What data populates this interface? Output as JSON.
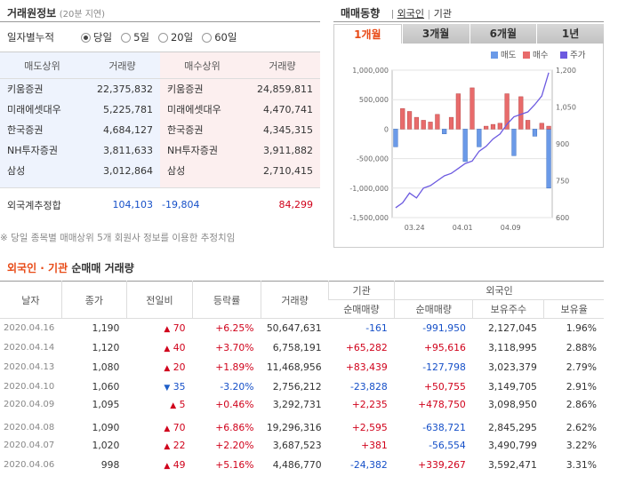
{
  "left": {
    "title": "거래원정보",
    "delay_note": "(20분 지연)",
    "cumulative_label": "일자별누적",
    "radio_options": [
      {
        "label": "당일",
        "selected": true
      },
      {
        "label": "5일",
        "selected": false
      },
      {
        "label": "20일",
        "selected": false
      },
      {
        "label": "60일",
        "selected": false
      }
    ],
    "headers": {
      "sell_top": "매도상위",
      "sell_vol": "거래량",
      "buy_top": "매수상위",
      "buy_vol": "거래량"
    },
    "rows": [
      {
        "sell": "키움증권",
        "sell_vol": "22,375,832",
        "buy": "키움증권",
        "buy_vol": "24,859,811"
      },
      {
        "sell": "미래에셋대우",
        "sell_vol": "5,225,781",
        "buy": "미래에셋대우",
        "buy_vol": "4,470,741"
      },
      {
        "sell": "한국증권",
        "sell_vol": "4,684,127",
        "buy": "한국증권",
        "buy_vol": "4,345,315"
      },
      {
        "sell": "NH투자증권",
        "sell_vol": "3,811,633",
        "buy": "NH투자증권",
        "buy_vol": "3,911,882"
      },
      {
        "sell": "삼성",
        "sell_vol": "3,012,864",
        "buy": "삼성",
        "buy_vol": "2,710,415"
      }
    ],
    "foreign": {
      "label": "외국계추정합",
      "sell": "104,103",
      "net": "-19,804",
      "buy": "84,299"
    },
    "footnote": "※ 당일 종목별 매매상위 5개 회원사 정보를 이용한 추정치임"
  },
  "right": {
    "title": "매매동향",
    "filter_foreign": "외국인",
    "filter_inst": "기관",
    "tabs": [
      {
        "label": "1개월",
        "active": true
      },
      {
        "label": "3개월",
        "active": false
      },
      {
        "label": "6개월",
        "active": false
      },
      {
        "label": "1년",
        "active": false
      }
    ]
  },
  "colors": {
    "sell": "#6b9ae8",
    "buy": "#e86b6b",
    "price": "#6c5ae0",
    "accent": "#e84a16"
  },
  "chart_data": {
    "type": "bar",
    "legend": [
      "매도",
      "매수",
      "주가"
    ],
    "legend_position": "top-right",
    "x_ticks": [
      "03.24",
      "04.01",
      "04.09"
    ],
    "y_left_ticks": [
      "1,000,000",
      "500,000",
      "0",
      "-500,000",
      "-1,000,000",
      "-1,500,000"
    ],
    "y_right_ticks": [
      "1,200",
      "1,050",
      "900",
      "750",
      "600"
    ],
    "ylim_left": [
      -1500000,
      1000000
    ],
    "ylim_right": [
      600,
      1200
    ],
    "grid": true,
    "series": [
      {
        "name": "매도",
        "values": [
          -300000,
          0,
          0,
          0,
          0,
          0,
          0,
          -80000,
          0,
          0,
          -550000,
          0,
          -300000,
          0,
          0,
          0,
          0,
          -450000,
          0,
          0,
          -120000,
          0,
          -1000000
        ]
      },
      {
        "name": "매수",
        "values": [
          0,
          350000,
          300000,
          200000,
          150000,
          120000,
          250000,
          0,
          200000,
          600000,
          0,
          700000,
          0,
          50000,
          80000,
          100000,
          600000,
          0,
          550000,
          150000,
          0,
          100000,
          50000
        ]
      },
      {
        "name": "주가",
        "values": [
          640,
          660,
          700,
          680,
          720,
          730,
          750,
          770,
          780,
          800,
          820,
          830,
          870,
          890,
          920,
          940,
          980,
          1010,
          1020,
          1030,
          1060,
          1095,
          1190
        ]
      }
    ]
  },
  "bottom": {
    "title_a": "외국인 · 기관",
    "title_b": "순매매 거래량",
    "headers": {
      "date": "날자",
      "close": "종가",
      "change": "전일비",
      "rate": "등락률",
      "volume": "거래량",
      "inst": "기관",
      "inst_net": "순매매량",
      "foreign": "외국인",
      "for_net": "순매매량",
      "for_hold": "보유주수",
      "for_ratio": "보유율"
    },
    "rows": [
      {
        "date": "2020.04.16",
        "close": "1,190",
        "dir": "up",
        "change": "70",
        "rate": "+6.25%",
        "volume": "50,647,631",
        "inst": "-161",
        "foreign": "-991,950",
        "hold": "2,127,045",
        "ratio": "1.96%"
      },
      {
        "date": "2020.04.14",
        "close": "1,120",
        "dir": "up",
        "change": "40",
        "rate": "+3.70%",
        "volume": "6,758,191",
        "inst": "+65,282",
        "foreign": "+95,616",
        "hold": "3,118,995",
        "ratio": "2.88%"
      },
      {
        "date": "2020.04.13",
        "close": "1,080",
        "dir": "up",
        "change": "20",
        "rate": "+1.89%",
        "volume": "11,468,956",
        "inst": "+83,439",
        "foreign": "-127,798",
        "hold": "3,023,379",
        "ratio": "2.79%"
      },
      {
        "date": "2020.04.10",
        "close": "1,060",
        "dir": "down",
        "change": "35",
        "rate": "-3.20%",
        "volume": "2,756,212",
        "inst": "-23,828",
        "foreign": "+50,755",
        "hold": "3,149,705",
        "ratio": "2.91%"
      },
      {
        "date": "2020.04.09",
        "close": "1,095",
        "dir": "up",
        "change": "5",
        "rate": "+0.46%",
        "volume": "3,292,731",
        "inst": "+2,235",
        "foreign": "+478,750",
        "hold": "3,098,950",
        "ratio": "2.86%"
      },
      {
        "date": "2020.04.08",
        "close": "1,090",
        "dir": "up",
        "change": "70",
        "rate": "+6.86%",
        "volume": "19,296,316",
        "inst": "+2,595",
        "foreign": "-638,721",
        "hold": "2,845,295",
        "ratio": "2.62%"
      },
      {
        "date": "2020.04.07",
        "close": "1,020",
        "dir": "up",
        "change": "22",
        "rate": "+2.20%",
        "volume": "3,687,523",
        "inst": "+381",
        "foreign": "-56,554",
        "hold": "3,490,799",
        "ratio": "3.22%"
      },
      {
        "date": "2020.04.06",
        "close": "998",
        "dir": "up",
        "change": "49",
        "rate": "+5.16%",
        "volume": "4,486,770",
        "inst": "-24,382",
        "foreign": "+339,267",
        "hold": "3,592,471",
        "ratio": "3.31%"
      }
    ]
  }
}
